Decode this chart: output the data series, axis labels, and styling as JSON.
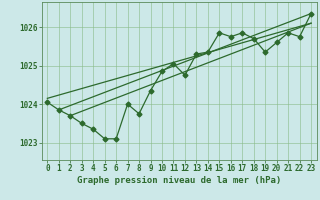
{
  "background_color": "#cce8e8",
  "plot_bg_color": "#cce8e8",
  "grid_color": "#88bb88",
  "line_color": "#2d6a2d",
  "xlabel": "Graphe pression niveau de la mer (hPa)",
  "xlabel_fontsize": 6.5,
  "ylabel_ticks": [
    1023,
    1024,
    1025,
    1026
  ],
  "xlim": [
    -0.5,
    23.5
  ],
  "ylim": [
    1022.55,
    1026.65
  ],
  "xticks": [
    0,
    1,
    2,
    3,
    4,
    5,
    6,
    7,
    8,
    9,
    10,
    11,
    12,
    13,
    14,
    15,
    16,
    17,
    18,
    19,
    20,
    21,
    22,
    23
  ],
  "line1_x": [
    0,
    1,
    2,
    3,
    4,
    5,
    6,
    7,
    8,
    9,
    10,
    11,
    12,
    13,
    14,
    15,
    16,
    17,
    18,
    19,
    20,
    21,
    22,
    23
  ],
  "line1_y": [
    1024.05,
    1023.85,
    1023.7,
    1023.5,
    1023.35,
    1023.1,
    1023.1,
    1024.0,
    1023.75,
    1024.35,
    1024.85,
    1025.05,
    1024.75,
    1025.3,
    1025.35,
    1025.85,
    1025.75,
    1025.85,
    1025.7,
    1025.35,
    1025.6,
    1025.85,
    1025.75,
    1026.35
  ],
  "line2_x": [
    0,
    23
  ],
  "line2_y": [
    1024.15,
    1026.1
  ],
  "line3_x": [
    1,
    23
  ],
  "line3_y": [
    1023.85,
    1026.35
  ],
  "line4_x": [
    2,
    23
  ],
  "line4_y": [
    1023.7,
    1026.1
  ],
  "marker_size": 2.5,
  "line_width": 0.9,
  "tick_fontsize": 5.5,
  "tick_color": "#2d6a2d",
  "border_color": "#2d6a2d",
  "spine_color": "#5a8a5a"
}
